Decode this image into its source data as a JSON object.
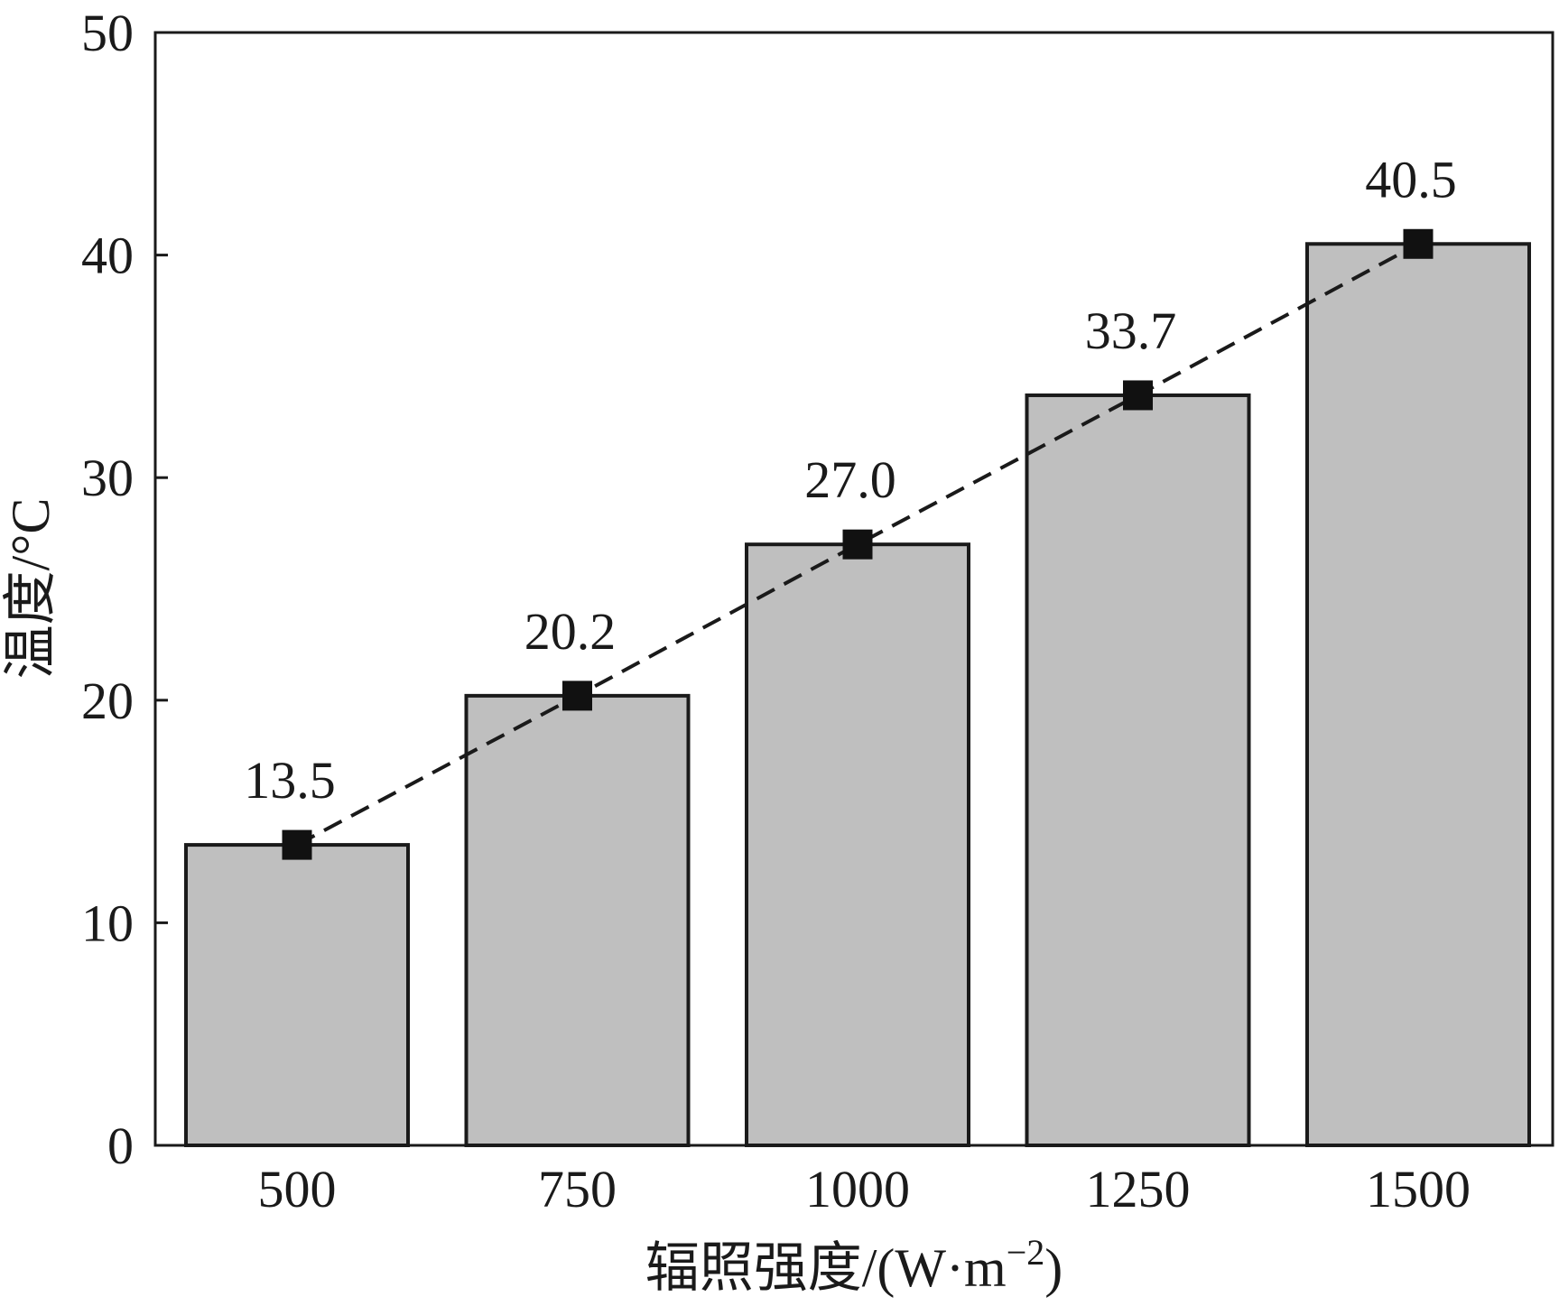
{
  "chart_data": {
    "type": "bar",
    "categories": [
      "500",
      "750",
      "1000",
      "1250",
      "1500"
    ],
    "series": [
      {
        "values": [
          13.5,
          20.2,
          27.0,
          33.7,
          40.5
        ],
        "data_labels": [
          "13.5",
          "20.2",
          "27.0",
          "33.7",
          "40.5"
        ]
      }
    ],
    "overlay": {
      "type": "line",
      "style": "dashed",
      "marker": "square"
    },
    "xlabel": "辐照强度/(W·m",
    "xlabel_sup": "−2",
    "xlabel_suffix": ")",
    "ylabel": "温度/°C",
    "ylim": [
      0,
      50
    ],
    "yticks": [
      "0",
      "10",
      "20",
      "30",
      "40",
      "50"
    ],
    "grid": false,
    "colors": {
      "bar_fill": "#bfbfbf",
      "bar_stroke": "#1a1a1a",
      "line": "#1a1a1a",
      "marker": "#111111"
    }
  }
}
